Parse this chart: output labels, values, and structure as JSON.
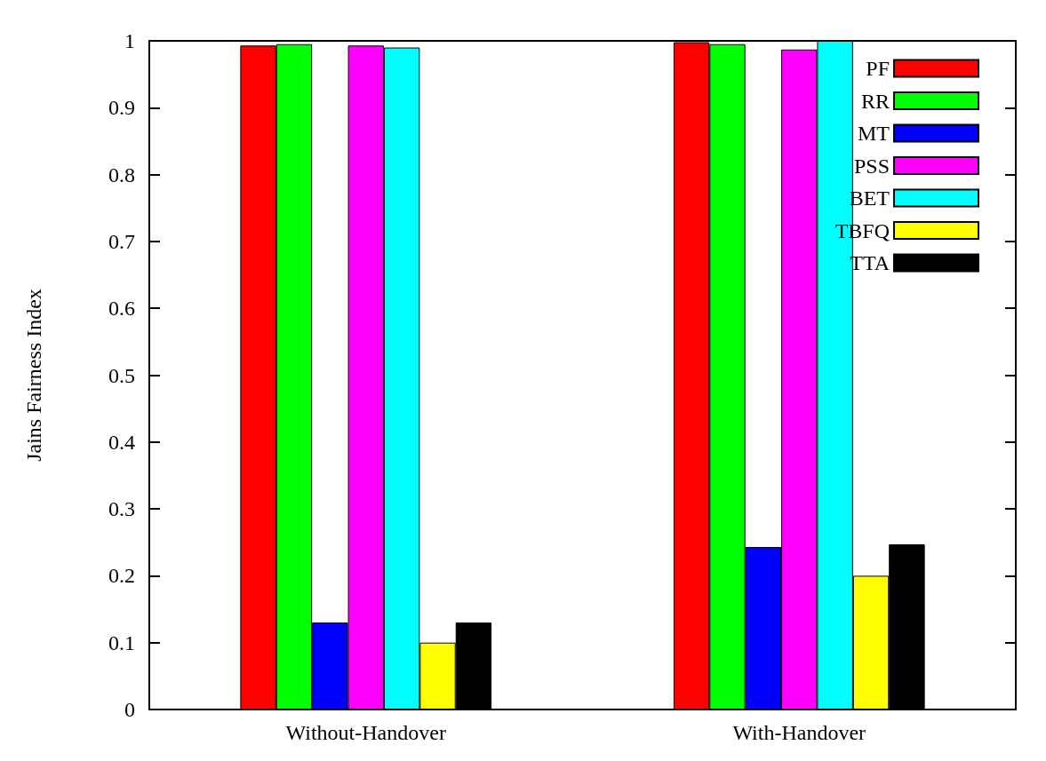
{
  "chart_data": {
    "type": "bar",
    "ylabel": "Jains Fairness Index",
    "categories": [
      "Without-Handover",
      "With-Handover"
    ],
    "series": [
      {
        "name": "PF",
        "color": "#ff0000",
        "values": [
          0.993,
          0.998
        ]
      },
      {
        "name": "RR",
        "color": "#00ff00",
        "values": [
          0.995,
          0.995
        ]
      },
      {
        "name": "MT",
        "color": "#0000ff",
        "values": [
          0.13,
          0.243
        ]
      },
      {
        "name": "PSS",
        "color": "#ff00ff",
        "values": [
          0.993,
          0.987
        ]
      },
      {
        "name": "BET",
        "color": "#00ffff",
        "values": [
          0.99,
          1.0
        ]
      },
      {
        "name": "TBFQ",
        "color": "#ffff00",
        "values": [
          0.1,
          0.2
        ]
      },
      {
        "name": "TTA",
        "color": "#000000",
        "values": [
          0.13,
          0.247
        ]
      }
    ],
    "ylim": [
      0,
      1
    ],
    "yticks": [
      0,
      0.1,
      0.2,
      0.3,
      0.4,
      0.5,
      0.6,
      0.7,
      0.8,
      0.9,
      1
    ],
    "grid": false,
    "legend": "top right"
  }
}
